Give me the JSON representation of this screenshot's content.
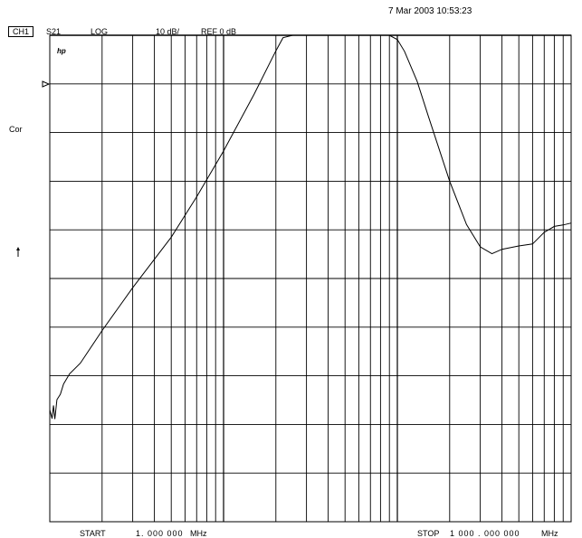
{
  "header": {
    "timestamp": "7 Mar 2003  10:53:23",
    "channel": "CH1",
    "parameter": "S21",
    "format": "LOG",
    "scale": "10 dB/",
    "reference": "REF 0 dB"
  },
  "annunciators": {
    "correction": "Cor",
    "logo": "hp"
  },
  "footer": {
    "start_label": "START",
    "start_value": "1. 000  000",
    "start_unit": "MHz",
    "stop_label": "STOP",
    "stop_value": "1 000 . 000  000",
    "stop_unit": "MHz"
  },
  "chart_data": {
    "type": "line",
    "title": "",
    "xlabel": "",
    "ylabel": "",
    "x_scale": "log",
    "xlim": [
      1,
      1000
    ],
    "ylim": [
      -100,
      0
    ],
    "grid": true,
    "reference_level_db": 0,
    "series": [
      {
        "x": [
          1.0,
          1.03,
          1.05,
          1.07,
          1.1,
          1.15,
          1.2,
          1.3,
          1.5,
          2.0,
          3.0,
          5.0,
          7.0,
          10.0,
          15.0,
          20.0,
          22.0,
          25.0,
          30.0,
          50.0,
          70.0,
          90.0,
          100.0,
          110.0,
          130.0,
          150.0,
          200.0,
          250.0,
          300.0,
          350.0,
          400.0,
          500.0,
          600.0,
          700.0,
          800.0,
          900.0,
          1000.0
        ],
        "y": [
          -77.0,
          -78.8,
          -76.1,
          -78.9,
          -74.9,
          -73.8,
          -71.7,
          -69.6,
          -67.4,
          -60.7,
          -51.9,
          -41.5,
          -33.2,
          -23.8,
          -12.1,
          -3.2,
          -0.5,
          0.0,
          0.0,
          0.0,
          0.0,
          0.0,
          -0.9,
          -3.3,
          -9.5,
          -16.4,
          -30.0,
          -38.9,
          -43.5,
          -44.9,
          -44.0,
          -43.3,
          -42.9,
          -40.5,
          -39.3,
          -39.0,
          -38.6
        ]
      }
    ]
  }
}
